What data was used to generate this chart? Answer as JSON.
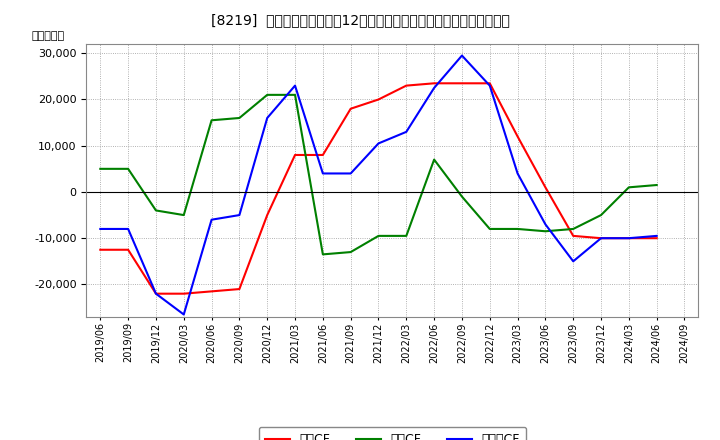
{
  "title": "[8219]  キャッシュフローの12か月移動合計の対前年同期増減額の推移",
  "ylabel": "（百万円）",
  "x_labels": [
    "2019/06",
    "2019/09",
    "2019/12",
    "2020/03",
    "2020/06",
    "2020/09",
    "2020/12",
    "2021/03",
    "2021/06",
    "2021/09",
    "2021/12",
    "2022/03",
    "2022/06",
    "2022/09",
    "2022/12",
    "2023/03",
    "2023/06",
    "2023/09",
    "2023/12",
    "2024/03",
    "2024/06",
    "2024/09"
  ],
  "op_cf": [
    -12500,
    -12500,
    -22000,
    -22000,
    -21500,
    -21000,
    -5000,
    8000,
    8000,
    18000,
    20000,
    23000,
    23500,
    23500,
    23500,
    12000,
    1000,
    -9500,
    -10000,
    -10000,
    -10000,
    null
  ],
  "inv_cf": [
    5000,
    5000,
    -4000,
    -5000,
    15500,
    16000,
    21000,
    21000,
    -13500,
    -13000,
    -9500,
    -9500,
    7000,
    -1000,
    -8000,
    -8000,
    -8500,
    -8000,
    -5000,
    1000,
    1500,
    null
  ],
  "free_cf": [
    -8000,
    -8000,
    -22000,
    -26500,
    -6000,
    -5000,
    16000,
    23000,
    4000,
    4000,
    10500,
    13000,
    22500,
    29500,
    23000,
    4000,
    -7000,
    -15000,
    -10000,
    -10000,
    -9500,
    null
  ],
  "ylim": [
    -27000,
    32000
  ],
  "yticks": [
    -20000,
    -10000,
    0,
    10000,
    20000,
    30000
  ],
  "op_color": "#ff0000",
  "inv_color": "#008000",
  "free_color": "#0000ff",
  "bg_color": "#ffffff",
  "grid_color": "#999999",
  "legend_labels": [
    "営業CF",
    "投資CF",
    "フリーCF"
  ]
}
